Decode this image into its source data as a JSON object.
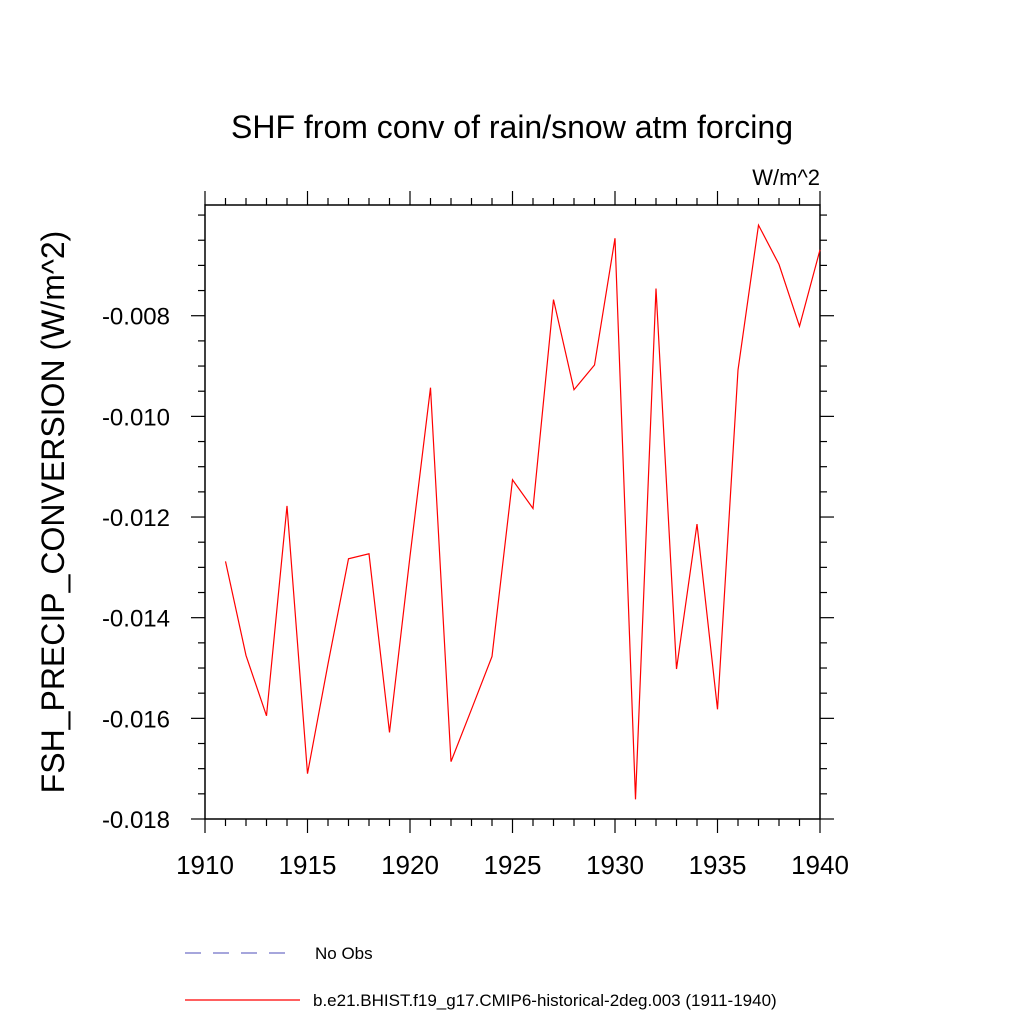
{
  "chart_data": {
    "type": "line",
    "title": "SHF from conv of rain/snow atm forcing",
    "units": "W/m^2",
    "ylabel": "FSH_PRECIP_CONVERSION  (W/m^2)",
    "xlabel": "",
    "xlim": [
      1910,
      1940
    ],
    "ylim": [
      -0.018,
      -0.0058
    ],
    "xticks": [
      1910,
      1915,
      1920,
      1925,
      1930,
      1935,
      1940
    ],
    "xtick_labels": [
      "1910",
      "1915",
      "1920",
      "1925",
      "1930",
      "1935",
      "1940"
    ],
    "yticks": [
      -0.018,
      -0.016,
      -0.014,
      -0.012,
      -0.01,
      -0.008
    ],
    "ytick_labels": [
      "-0.018",
      "-0.016",
      "-0.014",
      "-0.012",
      "-0.010",
      "-0.008"
    ],
    "grid": false,
    "legend_position": "bottom",
    "series": [
      {
        "name": "b.e21.BHIST.f19_g17.CMIP6-historical-2deg.003 (1911-1940)",
        "color": "#ff0000",
        "style": "solid",
        "x": [
          1911,
          1912,
          1913,
          1914,
          1915,
          1916,
          1917,
          1918,
          1919,
          1920,
          1921,
          1922,
          1923,
          1924,
          1925,
          1926,
          1927,
          1928,
          1929,
          1930,
          1931,
          1932,
          1933,
          1934,
          1935,
          1936,
          1937,
          1938,
          1939,
          1940
        ],
        "values": [
          -0.01288,
          -0.01475,
          -0.01595,
          -0.01178,
          -0.0171,
          -0.01492,
          -0.01283,
          -0.01273,
          -0.01628,
          -0.01278,
          -0.00943,
          -0.01686,
          -0.01582,
          -0.01477,
          -0.01126,
          -0.01183,
          -0.00768,
          -0.00947,
          -0.00898,
          -0.00646,
          -0.01761,
          -0.00746,
          -0.01502,
          -0.01214,
          -0.01582,
          -0.00908,
          -0.0062,
          -0.00698,
          -0.00821,
          -0.00669
        ]
      },
      {
        "name": "No Obs",
        "color": "#7070c8",
        "style": "dashed",
        "x": [],
        "values": []
      }
    ]
  }
}
